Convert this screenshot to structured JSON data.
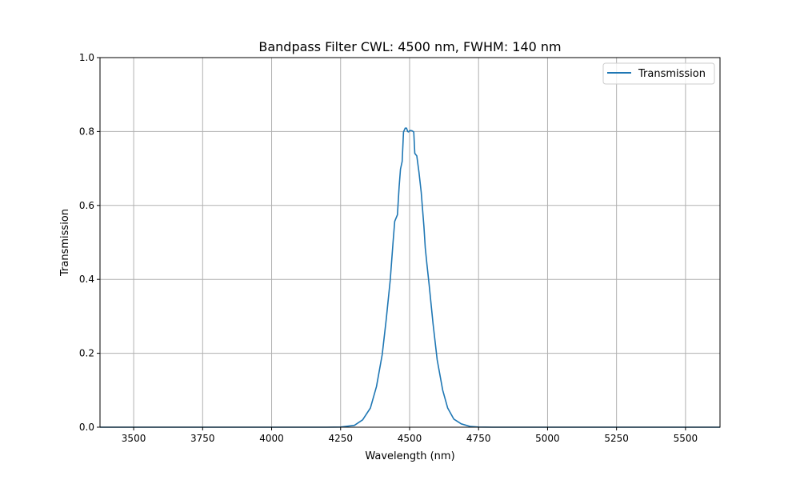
{
  "chart_data": {
    "type": "line",
    "title": "Bandpass Filter CWL: 4500 nm, FWHM: 140 nm",
    "xlabel": "Wavelength (nm)",
    "ylabel": "Transmission",
    "xlim": [
      3378,
      5625
    ],
    "ylim": [
      0,
      1
    ],
    "xticks": [
      3500,
      3750,
      4000,
      4250,
      4500,
      4750,
      5000,
      5250,
      5500
    ],
    "xtick_labels": [
      "3500",
      "3750",
      "4000",
      "4250",
      "4500",
      "4750",
      "5000",
      "5250",
      "5500"
    ],
    "yticks": [
      0,
      0.2,
      0.4,
      0.6,
      0.8,
      1.0
    ],
    "ytick_labels": [
      "0.0",
      "0.2",
      "0.4",
      "0.6",
      "0.8",
      "1.0"
    ],
    "grid": true,
    "legend": "top-right",
    "series": [
      {
        "name": "Transmission",
        "color": "#1f77b4",
        "x": [
          3378,
          4200,
          4250,
          4300,
          4330,
          4358,
          4380,
          4401,
          4415,
          4430,
          4440,
          4446,
          4456,
          4462,
          4467,
          4473,
          4478,
          4484,
          4489,
          4493,
          4496,
          4502,
          4509,
          4515,
          4519,
          4526,
          4534,
          4542,
          4552,
          4557,
          4563,
          4571,
          4585,
          4600,
          4620,
          4638,
          4660,
          4687,
          4720,
          4750,
          4800,
          5625
        ],
        "y": [
          0,
          0,
          0.0005,
          0.005,
          0.02,
          0.052,
          0.11,
          0.197,
          0.29,
          0.398,
          0.5,
          0.557,
          0.575,
          0.65,
          0.698,
          0.719,
          0.799,
          0.809,
          0.809,
          0.8,
          0.799,
          0.803,
          0.802,
          0.799,
          0.741,
          0.734,
          0.69,
          0.636,
          0.543,
          0.485,
          0.44,
          0.384,
          0.28,
          0.182,
          0.1,
          0.052,
          0.022,
          0.009,
          0.002,
          0.0005,
          0,
          0
        ]
      }
    ]
  }
}
